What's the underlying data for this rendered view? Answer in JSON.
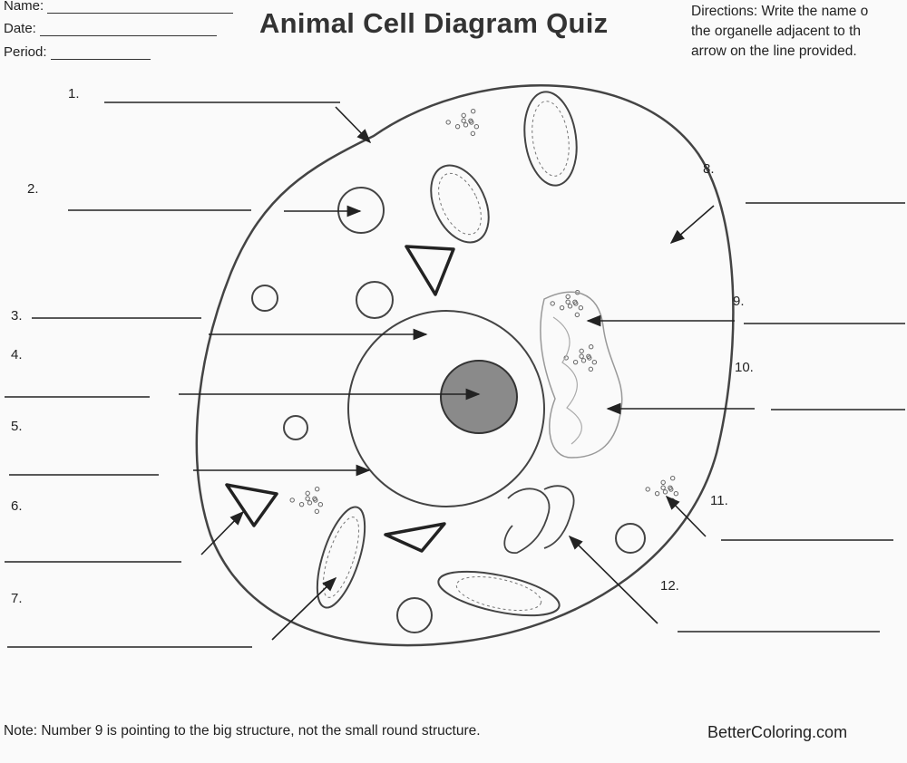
{
  "header": {
    "fields": [
      {
        "label": "Name:"
      },
      {
        "label": "Date:"
      },
      {
        "label": "Period:"
      }
    ],
    "title": "Animal Cell Diagram Quiz",
    "directions": [
      "Directions: Write the name o",
      "the organelle adjacent to th",
      "arrow on the line provided."
    ]
  },
  "labels": [
    "1.",
    "2.",
    "3.",
    "4.",
    "5.",
    "6.",
    "7.",
    "8.",
    "9.",
    "10.",
    "11.",
    "12."
  ],
  "note": "Note: Number 9 is pointing to the big structure, not the small round structure.",
  "watermark": "BetterColoring.com"
}
